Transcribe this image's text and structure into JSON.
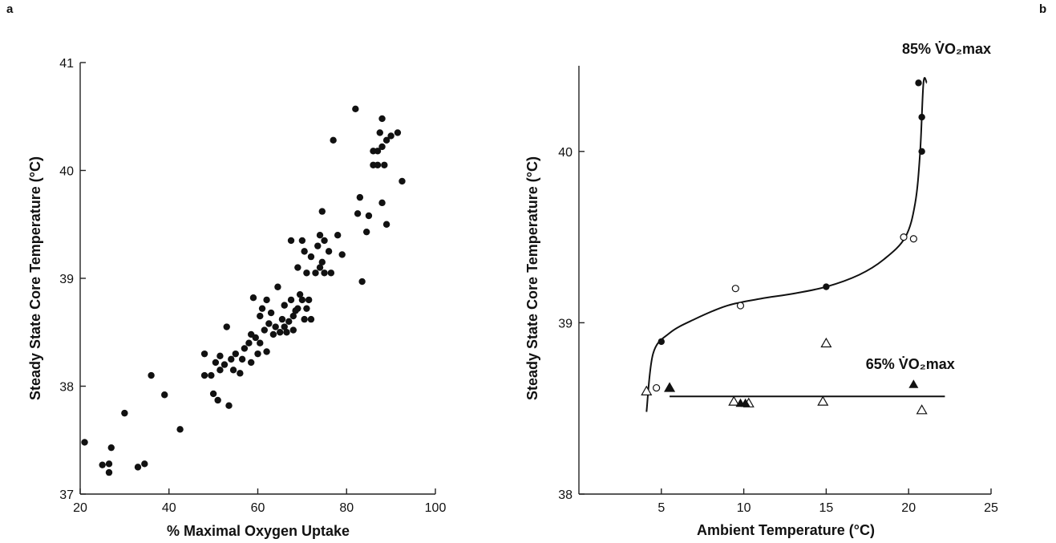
{
  "panel_labels": {
    "left": "a",
    "right": "b"
  },
  "chart_data": [
    {
      "type": "scatter",
      "panel": "a",
      "xlabel": "% Maximal Oxygen Uptake",
      "ylabel": "Steady State Core Temperature (°C)",
      "xlim": [
        20,
        100
      ],
      "ylim": [
        37,
        41
      ],
      "xticks": [
        20,
        40,
        60,
        80,
        100
      ],
      "yticks": [
        37,
        38,
        39,
        40,
        41
      ],
      "grid": false,
      "series": [
        {
          "marker": "filled-circle",
          "color": "#111111",
          "points": [
            [
              21,
              37.48
            ],
            [
              25,
              37.27
            ],
            [
              26.5,
              37.28
            ],
            [
              26.5,
              37.2
            ],
            [
              27,
              37.43
            ],
            [
              30,
              37.75
            ],
            [
              33,
              37.25
            ],
            [
              34.5,
              37.28
            ],
            [
              36,
              38.1
            ],
            [
              39,
              37.92
            ],
            [
              42.5,
              37.6
            ],
            [
              48,
              38.3
            ],
            [
              48,
              38.1
            ],
            [
              49.5,
              38.1
            ],
            [
              50,
              37.93
            ],
            [
              50.5,
              38.22
            ],
            [
              51,
              37.87
            ],
            [
              51.5,
              38.15
            ],
            [
              51.5,
              38.28
            ],
            [
              52.5,
              38.2
            ],
            [
              53,
              38.55
            ],
            [
              53.5,
              37.82
            ],
            [
              54,
              38.25
            ],
            [
              54.5,
              38.15
            ],
            [
              55,
              38.3
            ],
            [
              56,
              38.12
            ],
            [
              56.5,
              38.25
            ],
            [
              57,
              38.35
            ],
            [
              58,
              38.4
            ],
            [
              58.5,
              38.48
            ],
            [
              58.5,
              38.22
            ],
            [
              59,
              38.82
            ],
            [
              59.5,
              38.45
            ],
            [
              60,
              38.3
            ],
            [
              60.5,
              38.4
            ],
            [
              60.5,
              38.65
            ],
            [
              61,
              38.72
            ],
            [
              61.5,
              38.52
            ],
            [
              62,
              38.8
            ],
            [
              62,
              38.32
            ],
            [
              62.5,
              38.58
            ],
            [
              63,
              38.68
            ],
            [
              63.5,
              38.48
            ],
            [
              64,
              38.55
            ],
            [
              64.5,
              38.92
            ],
            [
              65,
              38.5
            ],
            [
              65.5,
              38.62
            ],
            [
              66,
              38.55
            ],
            [
              66,
              38.75
            ],
            [
              66.5,
              38.5
            ],
            [
              67,
              38.6
            ],
            [
              67.5,
              38.8
            ],
            [
              67.5,
              39.35
            ],
            [
              68,
              38.65
            ],
            [
              68,
              38.52
            ],
            [
              68.5,
              38.7
            ],
            [
              69,
              39.1
            ],
            [
              69,
              38.72
            ],
            [
              69.5,
              38.85
            ],
            [
              70,
              38.8
            ],
            [
              70,
              39.35
            ],
            [
              70.5,
              39.25
            ],
            [
              70.5,
              38.62
            ],
            [
              71,
              38.72
            ],
            [
              71,
              39.05
            ],
            [
              71.5,
              38.8
            ],
            [
              72,
              39.2
            ],
            [
              72,
              38.62
            ],
            [
              73,
              39.05
            ],
            [
              73.5,
              39.3
            ],
            [
              74,
              39.4
            ],
            [
              74,
              39.1
            ],
            [
              74.5,
              39.15
            ],
            [
              74.5,
              39.62
            ],
            [
              75,
              39.35
            ],
            [
              75,
              39.05
            ],
            [
              76,
              39.25
            ],
            [
              76.5,
              39.05
            ],
            [
              77,
              40.28
            ],
            [
              78,
              39.4
            ],
            [
              79,
              39.22
            ],
            [
              82,
              40.57
            ],
            [
              82.5,
              39.6
            ],
            [
              83,
              39.75
            ],
            [
              83.5,
              38.97
            ],
            [
              84.5,
              39.43
            ],
            [
              85,
              39.58
            ],
            [
              86,
              40.18
            ],
            [
              86,
              40.05
            ],
            [
              87,
              40.18
            ],
            [
              87,
              40.05
            ],
            [
              87.5,
              40.35
            ],
            [
              88,
              40.48
            ],
            [
              88,
              40.22
            ],
            [
              88,
              39.7
            ],
            [
              88.5,
              40.05
            ],
            [
              89,
              39.5
            ],
            [
              89,
              40.28
            ],
            [
              90,
              40.32
            ],
            [
              91.5,
              40.35
            ],
            [
              92.5,
              39.9
            ]
          ]
        }
      ]
    },
    {
      "type": "scatter",
      "panel": "b",
      "xlabel": "Ambient Temperature (°C)",
      "ylabel": "Steady State Core Temperature (°C)",
      "xlim": [
        0,
        25
      ],
      "ylim": [
        38,
        40.5
      ],
      "xticks": [
        5,
        10,
        15,
        20,
        25
      ],
      "yticks": [
        38,
        39,
        40
      ],
      "grid": false,
      "annotations": [
        {
          "text": "85% V̇O₂max",
          "x": 22.3,
          "y": 40.57
        },
        {
          "text": "65% V̇O₂max",
          "x": 20.1,
          "y": 38.73
        }
      ],
      "series": [
        {
          "marker": "filled-circle",
          "color": "#111111",
          "points": [
            [
              5,
              38.89
            ],
            [
              15,
              39.21
            ],
            [
              20.8,
              40.2
            ],
            [
              20.8,
              40.0
            ],
            [
              20.6,
              40.4
            ]
          ]
        },
        {
          "marker": "open-circle",
          "color": "#111111",
          "points": [
            [
              4.7,
              38.62
            ],
            [
              9.5,
              39.2
            ],
            [
              9.8,
              39.1
            ],
            [
              19.7,
              39.5
            ],
            [
              20.3,
              39.49
            ]
          ]
        },
        {
          "marker": "open-triangle",
          "color": "#111111",
          "points": [
            [
              4.1,
              38.6
            ],
            [
              5.5,
              38.62
            ],
            [
              9.4,
              38.54
            ],
            [
              10.3,
              38.53
            ],
            [
              14.8,
              38.54
            ],
            [
              15,
              38.88
            ],
            [
              20.8,
              38.49
            ]
          ]
        },
        {
          "marker": "filled-triangle",
          "color": "#111111",
          "points": [
            [
              5.5,
              38.62
            ],
            [
              9.8,
              38.53
            ],
            [
              10.1,
              38.53
            ],
            [
              20.3,
              38.64
            ]
          ]
        }
      ],
      "fits": [
        {
          "name": "85%",
          "points": [
            [
              4.1,
              38.48
            ],
            [
              4.5,
              38.82
            ],
            [
              5.5,
              38.94
            ],
            [
              7,
              39.02
            ],
            [
              9,
              39.1
            ],
            [
              11,
              39.14
            ],
            [
              13,
              39.17
            ],
            [
              15,
              39.21
            ],
            [
              17,
              39.28
            ],
            [
              18.5,
              39.37
            ],
            [
              19.8,
              39.5
            ],
            [
              20.4,
              39.7
            ],
            [
              20.7,
              40.0
            ],
            [
              20.9,
              40.4
            ],
            [
              21.1,
              40.4
            ]
          ]
        },
        {
          "name": "65%",
          "points": [
            [
              5.5,
              38.57
            ],
            [
              22.2,
              38.57
            ]
          ]
        }
      ]
    }
  ]
}
